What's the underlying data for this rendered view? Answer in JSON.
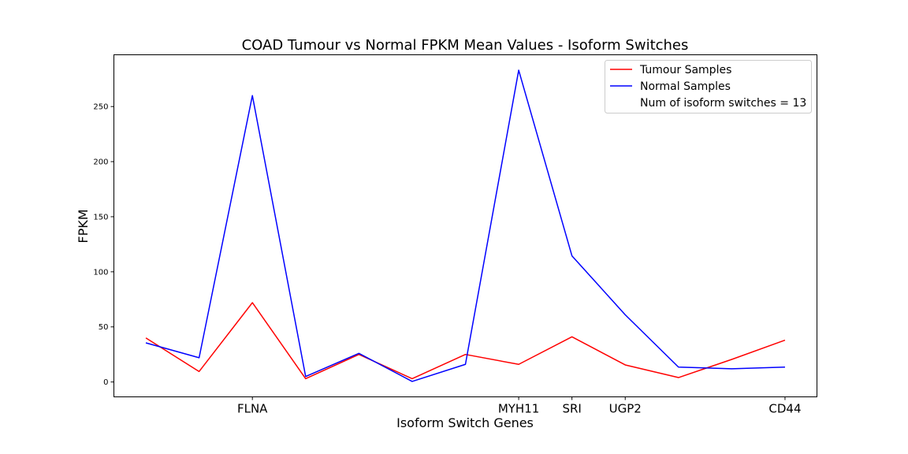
{
  "chart_data": {
    "type": "line",
    "title": "COAD Tumour vs Normal FPKM Mean Values - Isoform Switches",
    "xlabel": "Isoform Switch Genes",
    "ylabel": "FPKM",
    "x": [
      0,
      1,
      2,
      3,
      4,
      5,
      6,
      7,
      8,
      9,
      10,
      11,
      12
    ],
    "x_tick_labels": [
      "",
      "",
      "FLNA",
      "",
      "",
      "",
      "",
      "MYH11",
      "SRI",
      "UGP2",
      "",
      "",
      "CD44"
    ],
    "y_ticks": [
      0,
      50,
      100,
      150,
      200,
      250
    ],
    "ylim": [
      -13.5,
      297
    ],
    "xlim": [
      -0.6,
      12.6
    ],
    "series": [
      {
        "name": "Tumour Samples",
        "color": "#ff0000",
        "values": [
          40,
          9.5,
          72,
          3,
          25,
          3,
          25,
          16,
          41,
          15.5,
          4,
          20.5,
          38
        ]
      },
      {
        "name": "Normal Samples",
        "color": "#0000ff",
        "values": [
          35.5,
          22,
          260,
          5,
          26,
          0.5,
          16,
          283,
          114.5,
          61,
          13.5,
          12,
          13.5
        ]
      }
    ],
    "legend": {
      "position": "top-right",
      "entries": [
        {
          "label": "Tumour Samples",
          "color": "#ff0000",
          "marker": "line"
        },
        {
          "label": "Normal Samples",
          "color": "#0000ff",
          "marker": "line"
        },
        {
          "label": "Num of isoform switches = 13",
          "color": "",
          "marker": "none"
        }
      ]
    },
    "grid": false
  }
}
